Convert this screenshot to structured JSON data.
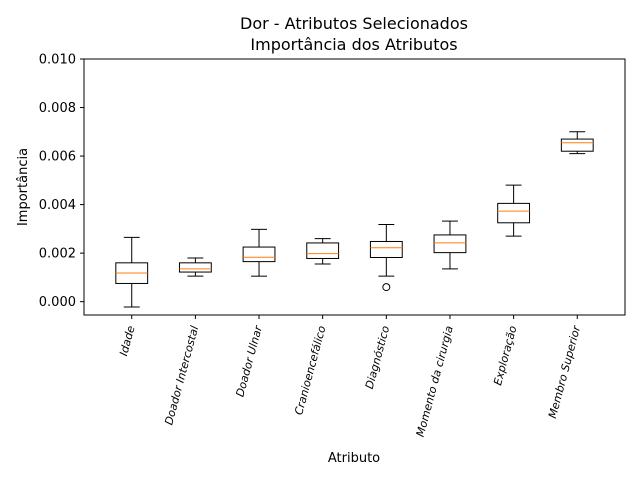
{
  "chart_data": {
    "type": "box",
    "title_line1": "Dor - Atributos Selecionados",
    "title_line2": "Importância dos Atributos",
    "xlabel": "Atributo",
    "ylabel": "Importância",
    "ylim": [
      -0.00055,
      0.01
    ],
    "yticks": [
      "0.000",
      "0.002",
      "0.004",
      "0.006",
      "0.008",
      "0.010"
    ],
    "ytick_values": [
      0.0,
      0.002,
      0.004,
      0.006,
      0.008,
      0.01
    ],
    "categories": [
      "Idade",
      "Doador Intercostal",
      "Doador Ulnar",
      "Cranioencefálico",
      "Diagnóstico",
      "Momento da cirurgia",
      "Exploração",
      "Membro Superior"
    ],
    "boxes": [
      {
        "whisker_low": -0.00022,
        "q1": 0.00075,
        "median": 0.00118,
        "q3": 0.0016,
        "whisker_high": 0.00265,
        "outliers": []
      },
      {
        "whisker_low": 0.00105,
        "q1": 0.00122,
        "median": 0.00135,
        "q3": 0.0016,
        "whisker_high": 0.0018,
        "outliers": []
      },
      {
        "whisker_low": 0.00105,
        "q1": 0.00165,
        "median": 0.00183,
        "q3": 0.00225,
        "whisker_high": 0.00298,
        "outliers": []
      },
      {
        "whisker_low": 0.00155,
        "q1": 0.00178,
        "median": 0.00198,
        "q3": 0.00242,
        "whisker_high": 0.0026,
        "outliers": []
      },
      {
        "whisker_low": 0.00105,
        "q1": 0.00182,
        "median": 0.00222,
        "q3": 0.00248,
        "whisker_high": 0.00318,
        "outliers": [
          0.0006
        ]
      },
      {
        "whisker_low": 0.00135,
        "q1": 0.00202,
        "median": 0.00242,
        "q3": 0.00275,
        "whisker_high": 0.00332,
        "outliers": []
      },
      {
        "whisker_low": 0.0027,
        "q1": 0.00325,
        "median": 0.00373,
        "q3": 0.00405,
        "whisker_high": 0.0048,
        "outliers": []
      },
      {
        "whisker_low": 0.0061,
        "q1": 0.0062,
        "median": 0.00655,
        "q3": 0.0067,
        "whisker_high": 0.007,
        "outliers": []
      }
    ],
    "colors": {
      "box": "#000000",
      "median": "#ff7f0e",
      "whisker": "#000000"
    },
    "grid": false
  }
}
